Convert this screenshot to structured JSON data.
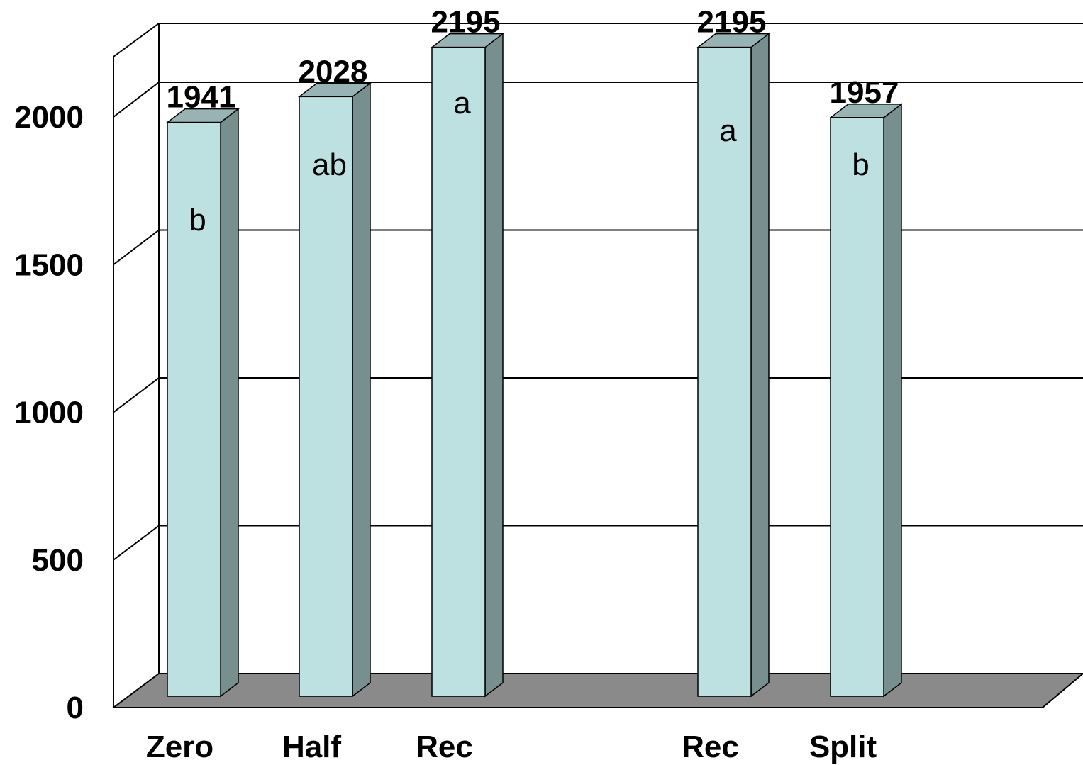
{
  "chart_data": {
    "type": "bar",
    "three_d": true,
    "title": "",
    "xlabel": "",
    "ylabel": "",
    "ylim": [
      0,
      2000
    ],
    "yticks": [
      0,
      500,
      1000,
      1500,
      2000
    ],
    "grid": true,
    "categories": [
      "Zero",
      "Half",
      "Rec",
      "Rec",
      "Split"
    ],
    "values": [
      1941,
      2028,
      2195,
      2195,
      1957
    ],
    "value_labels": [
      "1941",
      "2028",
      "2195",
      "2195",
      "1957"
    ],
    "significance_letters": [
      "b",
      "ab",
      "a",
      "a",
      "b"
    ],
    "colors": {
      "bar_front": "#bde1e1",
      "bar_side": "#778f8f",
      "bar_top": "#97b3b3",
      "floor": "#8a8a8a",
      "grid": "#000000"
    }
  }
}
